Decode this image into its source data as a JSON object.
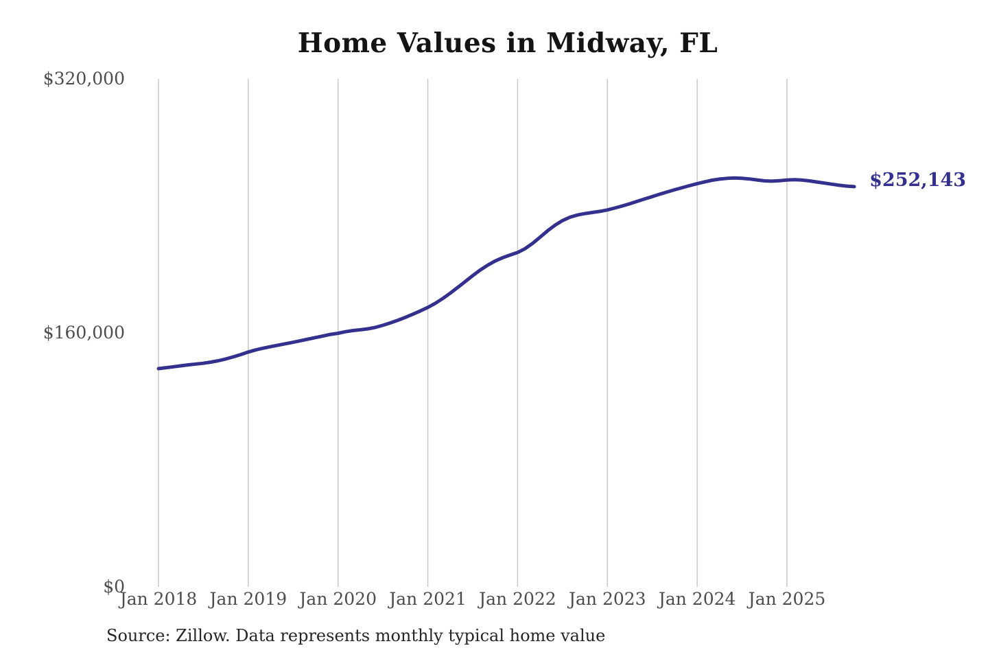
{
  "title": "Home Values in Midway, FL",
  "source_note": "Source: Zillow. Data represents monthly typical home value",
  "end_label": "$252,143",
  "colors": {
    "line": "#34308e",
    "end_label": "#34308e",
    "grid": "#c9c9c9",
    "axis_text": "#4c4c4c",
    "title_text": "#141414",
    "source_text": "#262626",
    "background": "#ffffff"
  },
  "chart_data": {
    "type": "line",
    "title": "Home Values in Midway, FL",
    "xlabel": "",
    "ylabel": "",
    "ylim": [
      0,
      320000
    ],
    "grid": "vertical-only",
    "legend": "none",
    "x_ticks": [
      "Jan 2018",
      "Jan 2019",
      "Jan 2020",
      "Jan 2021",
      "Jan 2022",
      "Jan 2023",
      "Jan 2024",
      "Jan 2025"
    ],
    "y_ticks": [
      {
        "label": "$0",
        "value": 0
      },
      {
        "label": "$160,000",
        "value": 160000
      },
      {
        "label": "$320,000",
        "value": 320000
      }
    ],
    "end_annotation": {
      "label": "$252,143",
      "value": 252143
    },
    "series": [
      {
        "name": "Monthly typical home value (USD)",
        "x": [
          "2018-01",
          "2018-02",
          "2018-03",
          "2018-04",
          "2018-05",
          "2018-06",
          "2018-07",
          "2018-08",
          "2018-09",
          "2018-10",
          "2018-11",
          "2018-12",
          "2019-01",
          "2019-02",
          "2019-03",
          "2019-04",
          "2019-05",
          "2019-06",
          "2019-07",
          "2019-08",
          "2019-09",
          "2019-10",
          "2019-11",
          "2019-12",
          "2020-01",
          "2020-02",
          "2020-03",
          "2020-04",
          "2020-05",
          "2020-06",
          "2020-07",
          "2020-08",
          "2020-09",
          "2020-10",
          "2020-11",
          "2020-12",
          "2021-01",
          "2021-02",
          "2021-03",
          "2021-04",
          "2021-05",
          "2021-06",
          "2021-07",
          "2021-08",
          "2021-09",
          "2021-10",
          "2021-11",
          "2021-12",
          "2022-01",
          "2022-02",
          "2022-03",
          "2022-04",
          "2022-05",
          "2022-06",
          "2022-07",
          "2022-08",
          "2022-09",
          "2022-10",
          "2022-11",
          "2022-12",
          "2023-01",
          "2023-02",
          "2023-03",
          "2023-04",
          "2023-05",
          "2023-06",
          "2023-07",
          "2023-08",
          "2023-09",
          "2023-10",
          "2023-11",
          "2023-12",
          "2024-01",
          "2024-02",
          "2024-03",
          "2024-04",
          "2024-05",
          "2024-06",
          "2024-07",
          "2024-08",
          "2024-09",
          "2024-10",
          "2024-11",
          "2024-12",
          "2025-01",
          "2025-02",
          "2025-03",
          "2025-04",
          "2025-05",
          "2025-06",
          "2025-07",
          "2025-08",
          "2025-09",
          "2025-10"
        ],
        "values": [
          137500,
          138100,
          138700,
          139300,
          139900,
          140400,
          140900,
          141600,
          142500,
          143600,
          144900,
          146400,
          148000,
          149300,
          150400,
          151400,
          152300,
          153200,
          154100,
          155100,
          156100,
          157100,
          158100,
          159100,
          159800,
          160800,
          161500,
          162000,
          162600,
          163500,
          164800,
          166300,
          168000,
          169800,
          171800,
          173900,
          176100,
          178700,
          181700,
          185100,
          188700,
          192400,
          196100,
          199600,
          202700,
          205300,
          207400,
          209100,
          210700,
          213100,
          216400,
          220300,
          224300,
          227900,
          230800,
          232900,
          234300,
          235200,
          235900,
          236600,
          237500,
          238700,
          240000,
          241400,
          242900,
          244400,
          245900,
          247400,
          248800,
          250200,
          251500,
          252800,
          254000,
          255200,
          256200,
          256900,
          257400,
          257600,
          257400,
          257000,
          256400,
          255800,
          255600,
          255900,
          256300,
          256500,
          256300,
          255800,
          255100,
          254400,
          253700,
          253000,
          252500,
          252143
        ]
      }
    ]
  }
}
